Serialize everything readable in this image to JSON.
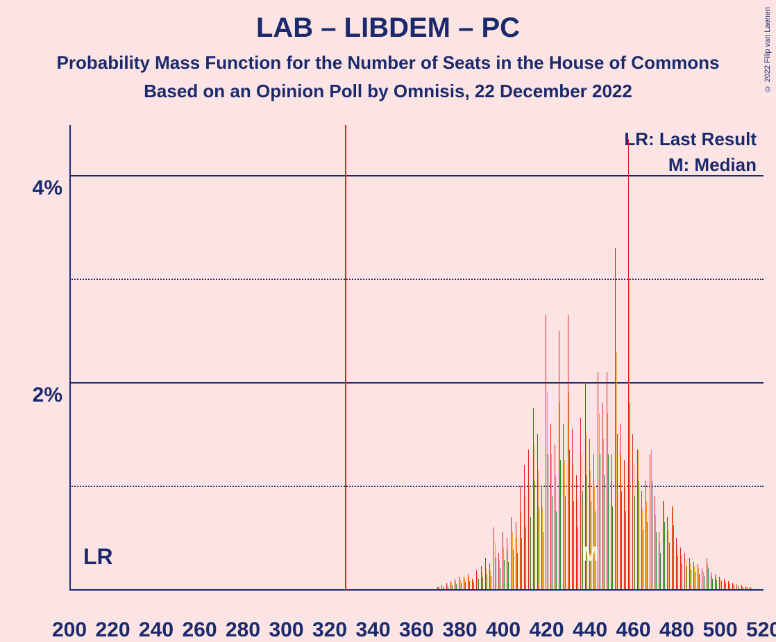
{
  "title": "LAB – LIBDEM – PC",
  "subtitle": "Probability Mass Function for the Number of Seats in the House of Commons",
  "subtitle2": "Based on an Opinion Poll by Omnisis, 22 December 2022",
  "copyright": "© 2022 Filip van Laenen",
  "legend": {
    "lr": "LR: Last Result",
    "m": "M: Median"
  },
  "lr_label": "LR",
  "m_label": "M",
  "chart": {
    "type": "bar",
    "background_color": "#fce4e4",
    "axis_color": "#1a2a6c",
    "text_color": "#1a2a6c",
    "x": {
      "min": 200,
      "max": 520,
      "tick_step": 20,
      "ticks": [
        200,
        220,
        240,
        260,
        280,
        300,
        320,
        340,
        360,
        380,
        400,
        420,
        440,
        460,
        480,
        500,
        520
      ]
    },
    "y": {
      "min": 0,
      "max": 4.5,
      "major_ticks_pct": [
        2,
        4
      ],
      "minor_ticks_pct": [
        1,
        3
      ]
    },
    "lr_x": 327,
    "m_x": 441,
    "vline_color": "#e02020",
    "series_colors": [
      "#e02020",
      "#f5a623",
      "#2e8b3d"
    ],
    "bars": [
      {
        "x": 370,
        "v": [
          0.02,
          0.02,
          0.02
        ]
      },
      {
        "x": 372,
        "v": [
          0.04,
          0.03,
          0.02
        ]
      },
      {
        "x": 374,
        "v": [
          0.06,
          0.05,
          0.03
        ]
      },
      {
        "x": 376,
        "v": [
          0.08,
          0.06,
          0.04
        ]
      },
      {
        "x": 378,
        "v": [
          0.1,
          0.08,
          0.05
        ]
      },
      {
        "x": 380,
        "v": [
          0.12,
          0.09,
          0.06
        ]
      },
      {
        "x": 382,
        "v": [
          0.12,
          0.1,
          0.07
        ]
      },
      {
        "x": 384,
        "v": [
          0.15,
          0.12,
          0.08
        ]
      },
      {
        "x": 386,
        "v": [
          0.1,
          0.09,
          0.07
        ]
      },
      {
        "x": 388,
        "v": [
          0.18,
          0.14,
          0.1
        ]
      },
      {
        "x": 390,
        "v": [
          0.22,
          0.16,
          0.12
        ]
      },
      {
        "x": 392,
        "v": [
          0.3,
          0.2,
          0.14
        ]
      },
      {
        "x": 394,
        "v": [
          0.25,
          0.18,
          0.13
        ]
      },
      {
        "x": 396,
        "v": [
          0.6,
          0.45,
          0.3
        ]
      },
      {
        "x": 398,
        "v": [
          0.35,
          0.28,
          0.2
        ]
      },
      {
        "x": 400,
        "v": [
          0.55,
          0.4,
          0.28
        ]
      },
      {
        "x": 402,
        "v": [
          0.5,
          0.38,
          0.26
        ]
      },
      {
        "x": 404,
        "v": [
          0.7,
          0.55,
          0.38
        ]
      },
      {
        "x": 406,
        "v": [
          0.65,
          0.5,
          0.35
        ]
      },
      {
        "x": 408,
        "v": [
          1.0,
          0.75,
          0.5
        ]
      },
      {
        "x": 410,
        "v": [
          1.2,
          0.9,
          0.6
        ]
      },
      {
        "x": 412,
        "v": [
          1.35,
          1.0,
          0.7
        ]
      },
      {
        "x": 414,
        "v": [
          1.75,
          1.4,
          1.05
        ]
      },
      {
        "x": 416,
        "v": [
          1.5,
          1.15,
          0.8
        ]
      },
      {
        "x": 418,
        "v": [
          1.0,
          0.8,
          0.55
        ]
      },
      {
        "x": 420,
        "v": [
          2.65,
          1.9,
          1.3
        ]
      },
      {
        "x": 422,
        "v": [
          1.6,
          1.3,
          0.9
        ]
      },
      {
        "x": 424,
        "v": [
          1.4,
          1.1,
          0.75
        ]
      },
      {
        "x": 426,
        "v": [
          2.5,
          1.8,
          1.25
        ]
      },
      {
        "x": 428,
        "v": [
          1.6,
          1.25,
          0.9
        ]
      },
      {
        "x": 430,
        "v": [
          2.65,
          1.9,
          1.35
        ]
      },
      {
        "x": 432,
        "v": [
          1.55,
          1.2,
          0.85
        ]
      },
      {
        "x": 434,
        "v": [
          1.1,
          0.85,
          0.6
        ]
      },
      {
        "x": 436,
        "v": [
          1.65,
          1.3,
          0.95
        ]
      },
      {
        "x": 438,
        "v": [
          2.0,
          1.5,
          1.1
        ]
      },
      {
        "x": 440,
        "v": [
          1.45,
          1.15,
          0.85
        ]
      },
      {
        "x": 442,
        "v": [
          1.3,
          1.0,
          0.75
        ]
      },
      {
        "x": 444,
        "v": [
          2.1,
          1.7,
          1.3
        ]
      },
      {
        "x": 446,
        "v": [
          1.8,
          1.45,
          1.1
        ]
      },
      {
        "x": 448,
        "v": [
          2.1,
          1.7,
          1.3
        ]
      },
      {
        "x": 450,
        "v": [
          1.3,
          1.05,
          0.8
        ]
      },
      {
        "x": 452,
        "v": [
          3.3,
          2.3,
          1.5
        ]
      },
      {
        "x": 454,
        "v": [
          1.6,
          1.3,
          0.95
        ]
      },
      {
        "x": 456,
        "v": [
          1.25,
          1.0,
          0.75
        ]
      },
      {
        "x": 458,
        "v": [
          4.35,
          3.0,
          1.8
        ]
      },
      {
        "x": 460,
        "v": [
          1.5,
          1.2,
          0.9
        ]
      },
      {
        "x": 462,
        "v": [
          1.35,
          1.35,
          1.05
        ]
      },
      {
        "x": 464,
        "v": [
          0.95,
          0.78,
          0.58
        ]
      },
      {
        "x": 466,
        "v": [
          1.05,
          0.85,
          0.65
        ]
      },
      {
        "x": 468,
        "v": [
          1.3,
          1.35,
          1.05
        ]
      },
      {
        "x": 470,
        "v": [
          0.9,
          0.72,
          0.55
        ]
      },
      {
        "x": 472,
        "v": [
          0.55,
          0.45,
          0.35
        ]
      },
      {
        "x": 474,
        "v": [
          0.85,
          0.85,
          0.65
        ]
      },
      {
        "x": 476,
        "v": [
          0.7,
          0.58,
          0.45
        ]
      },
      {
        "x": 478,
        "v": [
          0.8,
          0.8,
          0.62
        ]
      },
      {
        "x": 480,
        "v": [
          0.5,
          0.42,
          0.32
        ]
      },
      {
        "x": 482,
        "v": [
          0.4,
          0.33,
          0.25
        ]
      },
      {
        "x": 484,
        "v": [
          0.35,
          0.29,
          0.22
        ]
      },
      {
        "x": 486,
        "v": [
          0.3,
          0.25,
          0.19
        ]
      },
      {
        "x": 488,
        "v": [
          0.26,
          0.22,
          0.17
        ]
      },
      {
        "x": 490,
        "v": [
          0.24,
          0.2,
          0.15
        ]
      },
      {
        "x": 492,
        "v": [
          0.2,
          0.17,
          0.13
        ]
      },
      {
        "x": 494,
        "v": [
          0.3,
          0.25,
          0.2
        ]
      },
      {
        "x": 496,
        "v": [
          0.16,
          0.13,
          0.1
        ]
      },
      {
        "x": 498,
        "v": [
          0.14,
          0.12,
          0.09
        ]
      },
      {
        "x": 500,
        "v": [
          0.12,
          0.1,
          0.08
        ]
      },
      {
        "x": 502,
        "v": [
          0.1,
          0.08,
          0.06
        ]
      },
      {
        "x": 504,
        "v": [
          0.08,
          0.07,
          0.05
        ]
      },
      {
        "x": 506,
        "v": [
          0.06,
          0.05,
          0.04
        ]
      },
      {
        "x": 508,
        "v": [
          0.05,
          0.04,
          0.03
        ]
      },
      {
        "x": 510,
        "v": [
          0.04,
          0.03,
          0.02
        ]
      },
      {
        "x": 512,
        "v": [
          0.03,
          0.02,
          0.02
        ]
      },
      {
        "x": 514,
        "v": [
          0.02,
          0.02,
          0.01
        ]
      }
    ],
    "title_fontsize": 40,
    "subtitle_fontsize": 26,
    "tick_fontsize": 30
  },
  "yticks": {
    "2": "2%",
    "4": "4%"
  }
}
